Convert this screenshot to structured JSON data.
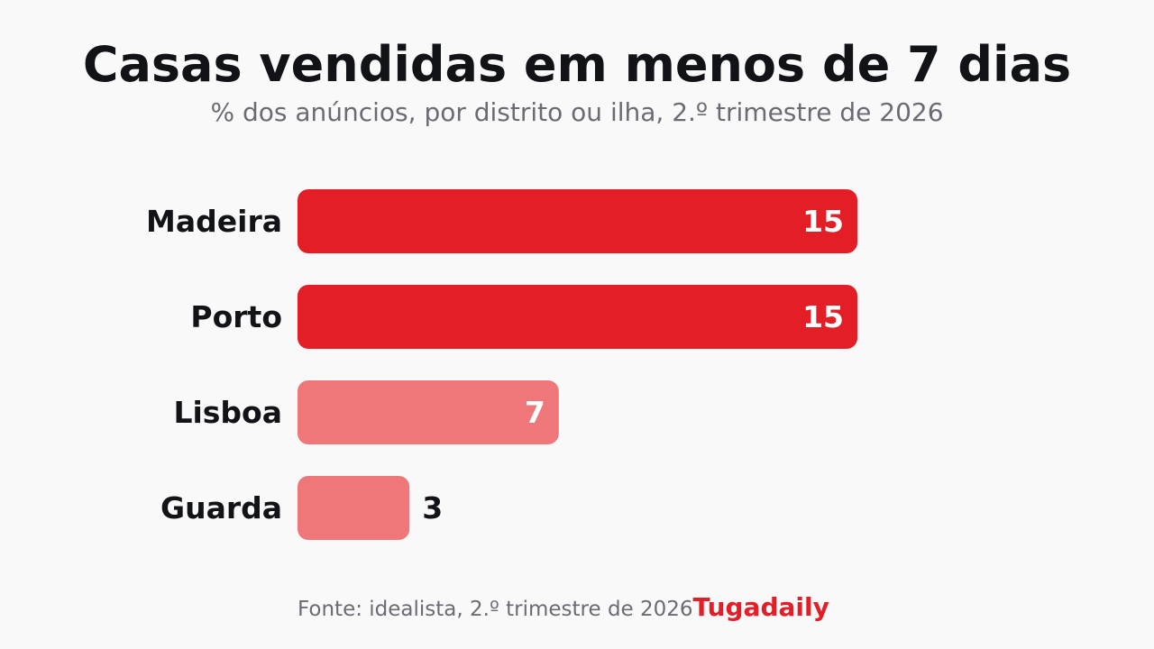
{
  "header": {
    "title": "Casas vendidas em menos de 7 dias",
    "subtitle": "% dos anúncios, por distrito ou ilha, 2.º trimestre de 2026"
  },
  "footer": {
    "source": "Fonte: idealista, 2.º trimestre de 2026",
    "brand": "Tugadaily"
  },
  "colors": {
    "highlight": "#e41e26",
    "muted": "#ef7679",
    "label_inside": "#ffffff",
    "label_outside": "#111317",
    "category_text": "#111317"
  },
  "chart_data": {
    "type": "bar",
    "orientation": "horizontal",
    "title": "Casas vendidas em menos de 7 dias",
    "subtitle": "% dos anúncios, por distrito ou ilha, 2.º trimestre de 2026",
    "categories": [
      "Madeira",
      "Porto",
      "Lisboa",
      "Guarda"
    ],
    "values": [
      15,
      15,
      7,
      3
    ],
    "highlight": [
      true,
      true,
      false,
      false
    ],
    "xlim": [
      0,
      15
    ],
    "grid": false,
    "legend": "none",
    "data_labels": true
  }
}
